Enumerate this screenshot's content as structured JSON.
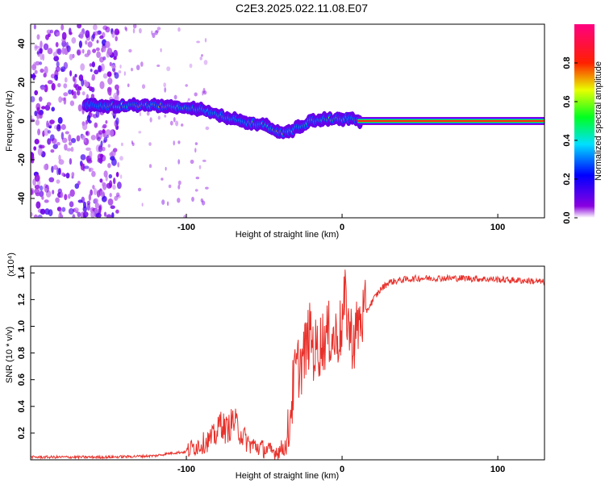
{
  "title": "C2E3.2025.022.11.08.E07",
  "colors": {
    "snr_line": "#e8302a",
    "axis": "#000000",
    "background": "#ffffff"
  },
  "chart_data": [
    {
      "type": "heatmap",
      "xlabel": "Height of straight line (km)",
      "ylabel": "Frequency (Hz)",
      "xlim": [
        -200,
        130
      ],
      "ylim": [
        -50,
        50
      ],
      "x_ticks": [
        -100,
        0,
        100
      ],
      "y_ticks": [
        -40,
        -20,
        0,
        20,
        40
      ],
      "colorbar": {
        "label": "Normalized spectral amplitude",
        "range": [
          0.0,
          1.0
        ],
        "ticks": [
          "0.0",
          "0.2",
          "0.4",
          "0.6",
          "0.8"
        ],
        "colormap": "rainbow (violet → blue → cyan → green → yellow → red → magenta)"
      },
      "ridge": {
        "x": [
          -165,
          -150,
          -140,
          -120,
          -105,
          -90,
          -80,
          -70,
          -60,
          -50,
          -45,
          -40,
          -36,
          -30,
          -25,
          -20,
          -10,
          0,
          5,
          10,
          130
        ],
        "freq": [
          8,
          8,
          8,
          8,
          7.5,
          6,
          3,
          1,
          -1,
          -2,
          -4,
          -6,
          -6,
          -4,
          -2,
          0,
          1,
          1,
          1.5,
          0,
          0
        ],
        "amplitude": [
          0.3,
          0.5,
          0.6,
          0.65,
          0.6,
          0.5,
          0.45,
          0.45,
          0.45,
          0.5,
          0.6,
          0.65,
          0.6,
          0.55,
          0.5,
          0.55,
          0.6,
          0.6,
          0.5,
          0.85,
          0.85
        ]
      },
      "noise_region_x": [
        -200,
        -145
      ]
    },
    {
      "type": "line",
      "xlabel": "Height of straight line (km)",
      "ylabel": "SNR (10 * v/v)",
      "y_multiplier": "(x10⁴)",
      "xlim": [
        -200,
        130
      ],
      "ylim": [
        0,
        1.45
      ],
      "x_ticks": [
        -100,
        0,
        100
      ],
      "y_ticks": [
        0.2,
        0.4,
        0.6,
        0.8,
        1.0,
        1.2,
        1.4
      ],
      "series": [
        {
          "x": [
            -200,
            -150,
            -120,
            -110,
            -100,
            -95,
            -90,
            -85,
            -80,
            -78,
            -75,
            -72,
            -70,
            -65,
            -60,
            -55,
            -50,
            -45,
            -40,
            -35,
            -33,
            -30,
            -28,
            -25,
            -22,
            -20,
            -18,
            -15,
            -12,
            -10,
            -8,
            -5,
            -2,
            0,
            2,
            5,
            8,
            10,
            12,
            15,
            20,
            25,
            30,
            40,
            50,
            60,
            80,
            100,
            120,
            130
          ],
          "values": [
            0.02,
            0.02,
            0.03,
            0.05,
            0.06,
            0.1,
            0.12,
            0.15,
            0.2,
            0.3,
            0.22,
            0.25,
            0.3,
            0.2,
            0.12,
            0.1,
            0.08,
            0.06,
            0.07,
            0.12,
            0.4,
            0.65,
            0.7,
            0.75,
            0.9,
            0.95,
            0.8,
            0.85,
            0.9,
            0.92,
            0.95,
            0.9,
            0.95,
            1.0,
            1.2,
            0.95,
            0.9,
            1.0,
            1.05,
            1.1,
            1.2,
            1.28,
            1.33,
            1.35,
            1.36,
            1.36,
            1.36,
            1.35,
            1.34,
            1.33
          ]
        }
      ]
    }
  ]
}
